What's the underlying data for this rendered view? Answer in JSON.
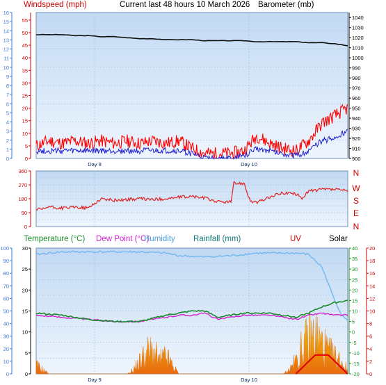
{
  "header": {
    "windspeed_label": "Windspeed (mph)",
    "title": "Current last 48 hours 10 March 2026",
    "barometer_label": "Barometer (mb)"
  },
  "compass": {
    "labels": [
      "N",
      "W",
      "S",
      "E",
      "N"
    ]
  },
  "bottom_header": {
    "temperature_label": "Temperature (°C)",
    "dewpoint_label": "Dew Point (°C)",
    "humidity_label": "Humidity",
    "rainfall_label": "Rainfall (mm)",
    "uv_label": "UV",
    "solar_label": "Solar"
  },
  "colors": {
    "plot_bg_top": "#c6dcf4",
    "plot_bg_bottom": "#eaf2fc",
    "wind_gust": "#ff0000",
    "wind_avg": "#2020d0",
    "barometer": "#101010",
    "direction": "#e02020",
    "temperature": "#1a8a2a",
    "dewpoint": "#d020d0",
    "humidity": "#70b8f0",
    "solar": "#f0a020",
    "uv": "#e00000",
    "axis_blue": "#3a78d8",
    "axis_red": "#d00000",
    "axis_green": "#1a8a2a"
  },
  "chart_data": [
    {
      "type": "line",
      "title": "Current last 48 hours 10 March 2026",
      "x_labels": [
        "Day 9",
        "Day 10"
      ],
      "axes": {
        "beaufort": {
          "ticks": [
            0,
            1,
            2,
            3,
            4,
            5,
            6,
            7,
            8,
            9,
            10,
            11,
            12,
            13,
            14,
            15,
            16
          ]
        },
        "windspeed": {
          "label": "Windspeed (mph)",
          "ylim": [
            0,
            58
          ],
          "ticks": [
            0,
            5,
            10,
            15,
            20,
            25,
            30,
            35,
            40,
            45,
            50,
            55
          ]
        },
        "barometer": {
          "label": "Barometer (mb)",
          "ylim": [
            900,
            1045
          ],
          "ticks": [
            900,
            910,
            920,
            930,
            940,
            950,
            960,
            970,
            980,
            990,
            1000,
            1010,
            1020,
            1030,
            1040
          ]
        }
      },
      "series": [
        {
          "name": "Barometer (mb)",
          "axis": "barometer",
          "x": [
            0,
            2,
            4,
            6,
            8,
            10,
            12,
            14,
            16,
            18,
            20,
            22,
            24,
            26,
            28,
            30,
            32,
            34,
            36,
            38,
            40,
            42,
            44,
            46,
            48
          ],
          "values": [
            1023,
            1023,
            1023,
            1022,
            1022,
            1021,
            1021,
            1020,
            1019,
            1019,
            1018,
            1018,
            1018,
            1017,
            1017,
            1017,
            1017,
            1016,
            1016,
            1016,
            1016,
            1015,
            1015,
            1014,
            1012
          ]
        },
        {
          "name": "Gust (mph)",
          "axis": "windspeed",
          "x": [
            0,
            2,
            4,
            6,
            8,
            10,
            12,
            14,
            16,
            18,
            20,
            22,
            24,
            26,
            28,
            30,
            32,
            34,
            36,
            38,
            40,
            42,
            44,
            46,
            48
          ],
          "values": [
            5,
            7,
            6,
            7,
            6,
            7,
            6,
            7,
            6,
            7,
            6,
            7,
            4,
            2,
            2,
            2,
            3,
            9,
            6,
            4,
            3,
            7,
            14,
            17,
            20
          ]
        },
        {
          "name": "Average (mph)",
          "axis": "windspeed",
          "x": [
            0,
            2,
            4,
            6,
            8,
            10,
            12,
            14,
            16,
            18,
            20,
            22,
            24,
            26,
            28,
            30,
            32,
            34,
            36,
            38,
            40,
            42,
            44,
            46,
            48
          ],
          "values": [
            3,
            3,
            3,
            3,
            3,
            3,
            3,
            3,
            3,
            3,
            3,
            3,
            2,
            0,
            0,
            0,
            1,
            4,
            3,
            2,
            1,
            3,
            7,
            8,
            11
          ]
        }
      ]
    },
    {
      "type": "line",
      "title": "",
      "x_labels": [
        "Day 9",
        "Day 10"
      ],
      "axes": {
        "direction": {
          "ylim": [
            0,
            360
          ],
          "ticks": [
            0,
            90,
            180,
            270,
            360
          ]
        }
      },
      "series": [
        {
          "name": "Wind direction (°)",
          "x": [
            0,
            1,
            2,
            3,
            4,
            6,
            8,
            10,
            12,
            14,
            16,
            18,
            20,
            22,
            24,
            26,
            28,
            30,
            30.5,
            32,
            33,
            34,
            36,
            38,
            40,
            41,
            42,
            44,
            46,
            48
          ],
          "values": [
            110,
            110,
            130,
            120,
            120,
            125,
            120,
            180,
            170,
            175,
            180,
            175,
            180,
            190,
            195,
            185,
            160,
            160,
            280,
            280,
            165,
            155,
            190,
            220,
            210,
            185,
            230,
            240,
            240,
            230
          ]
        }
      ]
    },
    {
      "type": "line",
      "title": "",
      "x_labels": [
        "Day 9",
        "Day 10"
      ],
      "axes": {
        "humidity": {
          "label": "Humidity",
          "ylim": [
            0,
            100
          ],
          "ticks": [
            0,
            10,
            20,
            30,
            40,
            50,
            60,
            70,
            80,
            90,
            100
          ]
        },
        "rainfall": {
          "label": "Rainfall (mm)",
          "ylim": [
            0,
            30
          ],
          "ticks": [
            0,
            5,
            10,
            15,
            20,
            25,
            30
          ]
        },
        "temperature": {
          "label": "Temperature (°C)",
          "ylim": [
            -20,
            40
          ],
          "ticks": [
            -20,
            -15,
            -10,
            -5,
            0,
            5,
            10,
            15,
            20,
            25,
            30,
            35,
            40
          ]
        },
        "uv": {
          "label": "UV",
          "ylim": [
            0,
            20
          ],
          "ticks": [
            0,
            2,
            4,
            6,
            8,
            10,
            12,
            14,
            16,
            18,
            20
          ]
        }
      },
      "series": [
        {
          "name": "Humidity",
          "axis": "humidity",
          "x": [
            0,
            4,
            8,
            12,
            16,
            20,
            22,
            26,
            30,
            34,
            38,
            40,
            42,
            44,
            45,
            46,
            47,
            48
          ],
          "values": [
            95,
            97,
            97,
            97,
            97,
            96,
            94,
            93,
            94,
            96,
            96,
            96,
            95,
            85,
            72,
            58,
            48,
            42
          ]
        },
        {
          "name": "Temperature (°C)",
          "axis": "temperature",
          "x": [
            0,
            4,
            8,
            12,
            16,
            20,
            22,
            24,
            26,
            28,
            30,
            32,
            34,
            36,
            38,
            40,
            42,
            44,
            46,
            48
          ],
          "values": [
            9,
            8,
            6,
            5,
            5,
            8,
            9,
            10,
            10,
            7,
            8,
            9,
            9,
            9,
            8,
            7,
            9,
            12,
            14,
            15
          ]
        },
        {
          "name": "Dew Point (°C)",
          "axis": "temperature",
          "x": [
            0,
            4,
            8,
            12,
            16,
            20,
            22,
            24,
            26,
            28,
            30,
            32,
            34,
            36,
            38,
            40,
            42,
            44,
            46,
            48
          ],
          "values": [
            8,
            7,
            6,
            5,
            5,
            7,
            8,
            8,
            9,
            6,
            7,
            8,
            8,
            8,
            7,
            6,
            8,
            9,
            8,
            8
          ]
        },
        {
          "name": "Solar",
          "axis": "rainfall",
          "x": [
            0,
            1,
            2,
            3,
            14,
            15,
            16,
            17,
            18,
            19,
            20,
            21,
            22,
            23,
            38,
            39,
            40,
            41,
            42,
            43,
            44,
            45,
            46,
            47,
            48
          ],
          "values": [
            2,
            1,
            0,
            0,
            0,
            1,
            3,
            5,
            5,
            3,
            4,
            2,
            0,
            0,
            0,
            1,
            3,
            6,
            8,
            9,
            7,
            5,
            4,
            3,
            1
          ]
        },
        {
          "name": "UV",
          "axis": "uv",
          "x": [
            40,
            41,
            42,
            43,
            44,
            45,
            46,
            47,
            48
          ],
          "values": [
            0,
            1,
            2,
            3,
            3,
            3,
            2,
            1,
            0
          ]
        }
      ]
    }
  ]
}
